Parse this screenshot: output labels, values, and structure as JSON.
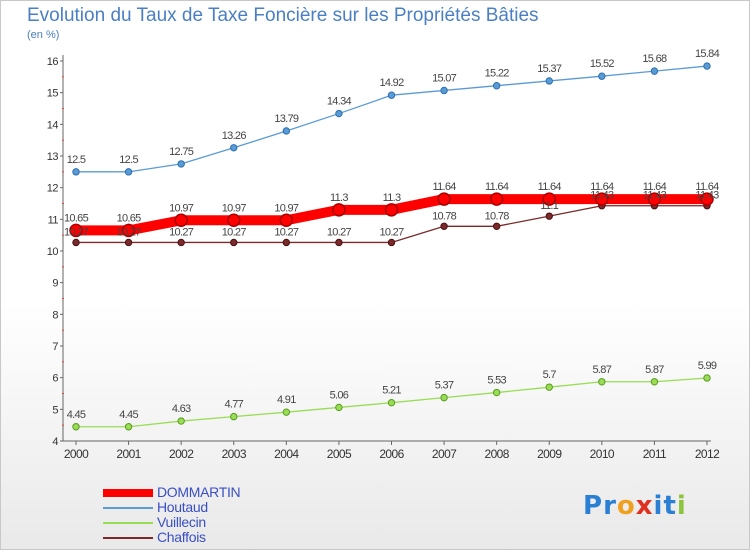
{
  "chart_data": {
    "type": "line",
    "title": "Evolution du Taux de Taxe Foncière sur les Propriétés Bâties",
    "subtitle": "(en %)",
    "x": [
      "2000",
      "2001",
      "2002",
      "2003",
      "2004",
      "2005",
      "2006",
      "2007",
      "2008",
      "2009",
      "2010",
      "2011",
      "2012"
    ],
    "ylim": [
      4,
      16
    ],
    "yticks": [
      "4",
      "5",
      "6",
      "7",
      "8",
      "9",
      "10",
      "11",
      "12",
      "13",
      "14",
      "15",
      "16"
    ],
    "grid": false,
    "legend_position": "bottom-left",
    "series": [
      {
        "name": "DOMMARTIN",
        "color": "#ff0000",
        "values": [
          10.65,
          10.65,
          10.97,
          10.97,
          10.97,
          11.3,
          11.3,
          11.64,
          11.64,
          11.64,
          11.64,
          11.64,
          11.64
        ],
        "labels": [
          "10.65",
          "10.65",
          "10.97",
          "10.97",
          "10.97",
          "11.3",
          "11.3",
          "11.64",
          "11.64",
          "11.64",
          "11.64",
          "11.64",
          "11.64"
        ]
      },
      {
        "name": "Houtaud",
        "color": "#5b9bd5",
        "values": [
          12.5,
          12.5,
          12.75,
          13.26,
          13.79,
          14.34,
          14.92,
          15.07,
          15.22,
          15.37,
          15.52,
          15.68,
          15.84
        ],
        "labels": [
          "12.5",
          "12.5",
          "12.75",
          "13.26",
          "13.79",
          "14.34",
          "14.92",
          "15.07",
          "15.22",
          "15.37",
          "15.52",
          "15.68",
          "15.84"
        ]
      },
      {
        "name": "Vuillecin",
        "color": "#99dd55",
        "values": [
          4.45,
          4.45,
          4.63,
          4.77,
          4.91,
          5.06,
          5.21,
          5.37,
          5.53,
          5.7,
          5.87,
          5.87,
          5.99
        ],
        "labels": [
          "4.45",
          "4.45",
          "4.63",
          "4.77",
          "4.91",
          "5.06",
          "5.21",
          "5.37",
          "5.53",
          "5.7",
          "5.87",
          "5.87",
          "5.99"
        ]
      },
      {
        "name": "Chaffois",
        "color": "#7a2a2a",
        "values": [
          10.27,
          10.27,
          10.27,
          10.27,
          10.27,
          10.27,
          10.27,
          10.78,
          10.78,
          11.1,
          11.43,
          11.43,
          11.43
        ],
        "labels": [
          "10.27",
          "10.27",
          "10.27",
          "10.27",
          "10.27",
          "10.27",
          "10.27",
          "10.78",
          "10.78",
          "11.1",
          "11.43",
          "11.43",
          "11.43"
        ]
      }
    ]
  },
  "legend": [
    {
      "label": "DOMMARTIN",
      "color": "#ff0000"
    },
    {
      "label": "Houtaud",
      "color": "#5b9bd5"
    },
    {
      "label": "Vuillecin",
      "color": "#99dd55"
    },
    {
      "label": "Chaffois",
      "color": "#7a2a2a"
    }
  ],
  "logo": {
    "letters": [
      "P",
      "r",
      "o",
      "x",
      "i",
      "t",
      "i"
    ],
    "colors": [
      "#2a7fd4",
      "#2a7fd4",
      "#f0a020",
      "#e03020",
      "#2a7fd4",
      "#2a7fd4",
      "#8cc43c"
    ]
  }
}
